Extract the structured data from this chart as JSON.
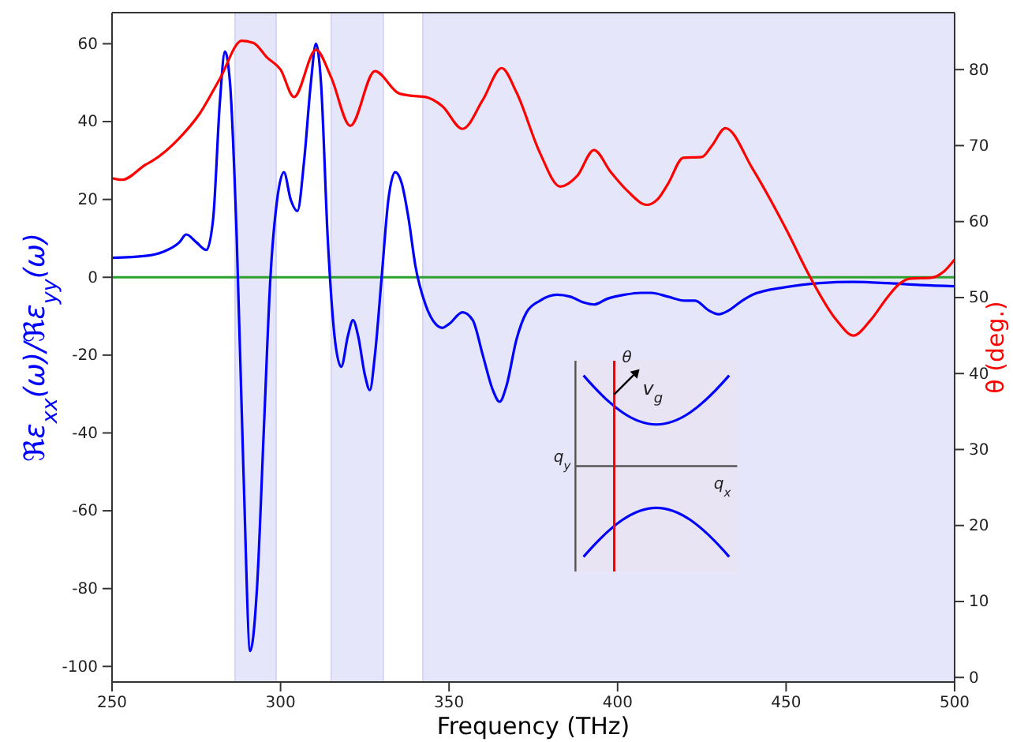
{
  "chart_data": {
    "type": "line",
    "xlabel": "Frequency (THz)",
    "ylabel": "ℜε$_{xx}$(ω)/ℜε$_{yy}$(ω)",
    "y2label": "θ (deg.)",
    "xlim": [
      250,
      500
    ],
    "xticks": [
      250,
      300,
      350,
      400,
      450,
      500
    ],
    "ylim": [
      -104,
      68
    ],
    "yticks": [
      -100,
      -80,
      -60,
      -40,
      -20,
      0,
      20,
      40,
      60
    ],
    "y2lim": [
      -0.6,
      87.5
    ],
    "y2ticks": [
      0,
      10,
      20,
      30,
      40,
      50,
      60,
      70,
      80
    ],
    "line_style": "solid",
    "series": [
      {
        "color": "#0000ff",
        "x": [
          250,
          260,
          265,
          270,
          272,
          275,
          278,
          280,
          282,
          283.5,
          285,
          287,
          289,
          291,
          293,
          295,
          297,
          299,
          301,
          303,
          305,
          307,
          309,
          310.5,
          312,
          314,
          316,
          318,
          320,
          321.5,
          323,
          325,
          326.5,
          328,
          330,
          332,
          334,
          336,
          338,
          340,
          343,
          346,
          348,
          350,
          354,
          357,
          360,
          363,
          365,
          367,
          370,
          373,
          377,
          382,
          386,
          390,
          393,
          397,
          402,
          407,
          410,
          415,
          420,
          423,
          427,
          430,
          433,
          437,
          440,
          450,
          460,
          470,
          480,
          490,
          500
        ],
        "values": [
          5,
          5.5,
          6.5,
          9,
          11,
          9,
          7,
          15,
          45,
          58,
          50,
          10,
          -50,
          -96,
          -80,
          -40,
          0,
          20,
          27,
          20,
          17,
          30,
          50,
          60,
          50,
          10,
          -15,
          -23,
          -15,
          -11,
          -15,
          -25,
          -29,
          -20,
          0,
          20,
          27,
          24,
          15,
          3,
          -7,
          -12,
          -13,
          -12,
          -9,
          -11,
          -20,
          -29,
          -32,
          -28,
          -16,
          -9,
          -6,
          -4.5,
          -5,
          -6.5,
          -7,
          -5.5,
          -4.5,
          -4,
          -4,
          -5,
          -6,
          -6,
          -8.5,
          -9.5,
          -8.5,
          -6,
          -4.5,
          -2.5,
          -1.5,
          -1.2,
          -1.5,
          -2,
          -2.3
        ]
      },
      {
        "color": "#ff0000",
        "axis": "y2",
        "x": [
          250,
          253,
          260,
          262,
          270,
          276,
          282,
          288.5,
          292,
          296,
          300,
          304,
          310.5,
          315,
          320.7,
          328,
          335,
          338,
          343,
          348,
          354,
          360,
          365.6,
          370,
          377,
          383,
          388,
          393,
          398,
          403,
          408.7,
          412,
          415,
          419.5,
          425,
          428,
          432,
          440,
          450,
          457,
          465,
          470,
          475,
          480,
          483.6,
          487,
          493,
          497,
          500
        ],
        "values": [
          65.7,
          65.5,
          67.5,
          68,
          71,
          74.2,
          78.8,
          83.8,
          83.5,
          81.6,
          80,
          76.4,
          82.6,
          79,
          72.6,
          79.8,
          76.9,
          76.6,
          76.4,
          75.2,
          72.2,
          76,
          80.2,
          77,
          69,
          64.6,
          66,
          69.4,
          66.5,
          64,
          62.2,
          63,
          65,
          68.4,
          68.5,
          70,
          72.3,
          67,
          59,
          52.8,
          47,
          45,
          47,
          50,
          51.8,
          52.5,
          52.6,
          53.5,
          55
        ]
      }
    ],
    "ref_lines": [
      {
        "axis": "y",
        "value": 0,
        "color": "#2ca02c"
      }
    ],
    "bands": [
      {
        "axis": "x",
        "from": 286.5,
        "to": 298.7,
        "color": "#e6e6fa"
      },
      {
        "axis": "x",
        "from": 315,
        "to": 330.5,
        "color": "#e6e6fa"
      },
      {
        "axis": "x",
        "from": 342.2,
        "to": 500,
        "color": "#e6e6fa"
      }
    ],
    "annotations": [
      "θ",
      "v$_{g}$",
      "q$_{y}$",
      "q$_{x}$"
    ]
  }
}
